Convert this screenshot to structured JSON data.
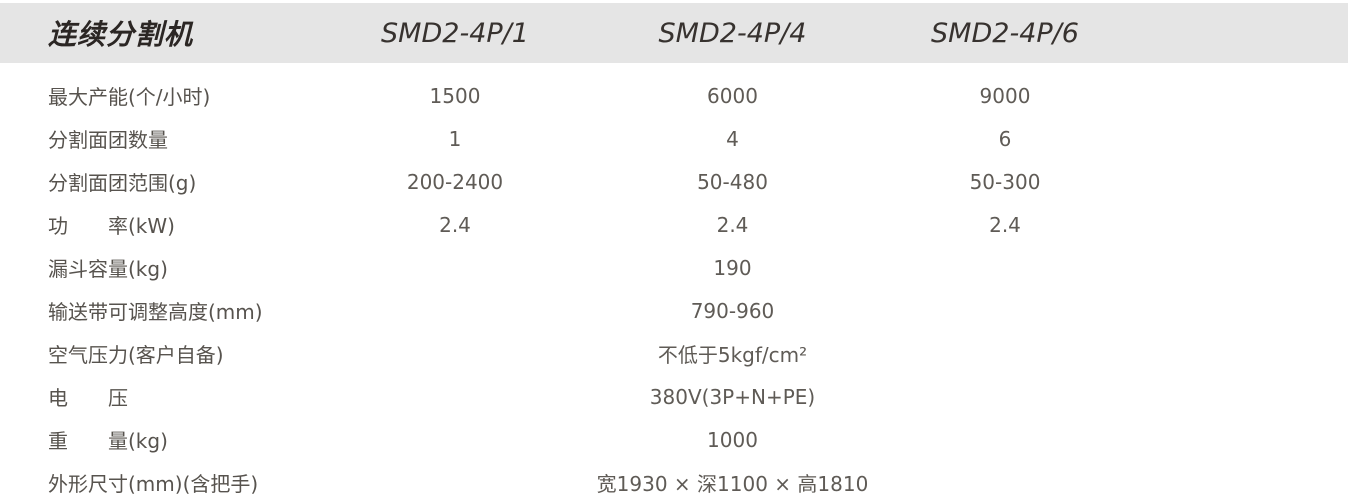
{
  "table": {
    "title": "连续分割机",
    "models": [
      "SMD2-4P/1",
      "SMD2-4P/4",
      "SMD2-4P/6"
    ],
    "rows": [
      {
        "label": "最大产能(个/小时)",
        "values": [
          "1500",
          "6000",
          "9000"
        ]
      },
      {
        "label": "分割面团数量",
        "values": [
          "1",
          "4",
          "6"
        ]
      },
      {
        "label": "分割面团范围(g)",
        "values": [
          "200-2400",
          "50-480",
          "50-300"
        ]
      },
      {
        "label": "功　　率(kW)",
        "values": [
          "2.4",
          "2.4",
          "2.4"
        ]
      },
      {
        "label": "漏斗容量(kg)",
        "span_value": "190"
      },
      {
        "label": "输送带可调整高度(mm)",
        "span_value": "790-960"
      },
      {
        "label": "空气压力(客户自备)",
        "span_value": "不低于5kgf/cm²"
      },
      {
        "label": "电　　压",
        "span_value": "380V(3P+N+PE)"
      },
      {
        "label": "重　　量(kg)",
        "span_value": "1000"
      },
      {
        "label": "外形尺寸(mm)(含把手)",
        "span_value": "宽1930 × 深1100 × 高1810"
      }
    ],
    "colors": {
      "header_bg": "#e5e5e5",
      "title_text": "#2b2624",
      "model_text": "#37322f",
      "label_text": "#57534e",
      "value_text": "#5f5b56"
    }
  }
}
